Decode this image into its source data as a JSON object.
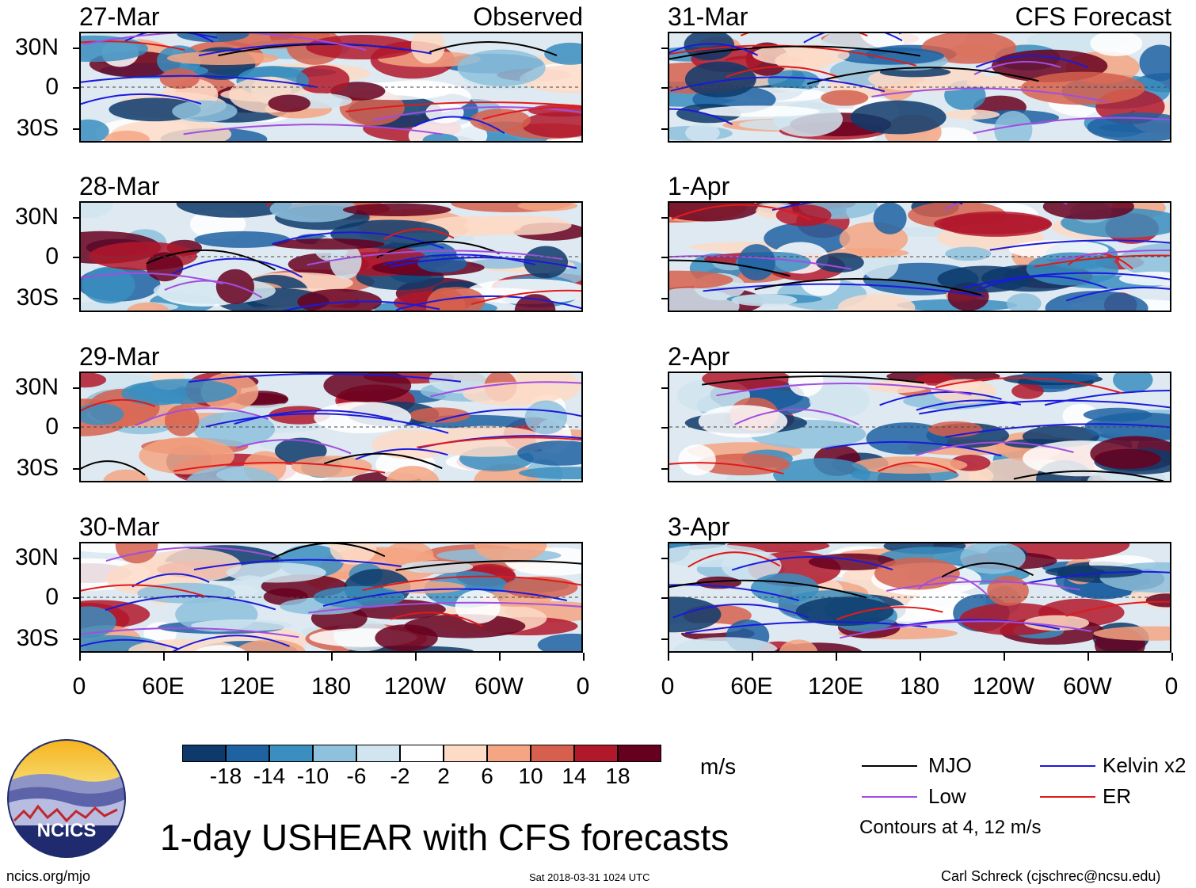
{
  "panels": {
    "left": [
      {
        "date": "27-Mar",
        "title": "Observed"
      },
      {
        "date": "28-Mar",
        "title": ""
      },
      {
        "date": "29-Mar",
        "title": ""
      },
      {
        "date": "30-Mar",
        "title": ""
      }
    ],
    "right": [
      {
        "date": "31-Mar",
        "title": "CFS Forecast"
      },
      {
        "date": "1-Apr",
        "title": ""
      },
      {
        "date": "2-Apr",
        "title": ""
      },
      {
        "date": "3-Apr",
        "title": ""
      }
    ]
  },
  "y_ticks": [
    "30N",
    "0",
    "30S"
  ],
  "x_ticks": [
    "0",
    "60E",
    "120E",
    "180",
    "120W",
    "60W",
    "0"
  ],
  "colorbar": {
    "labels": [
      "-18",
      "-14",
      "-10",
      "-6",
      "-2",
      "2",
      "6",
      "10",
      "14",
      "18"
    ],
    "units": "m/s",
    "colors": [
      "#0d3a6b",
      "#1e62a2",
      "#3a8ec0",
      "#8ec1dd",
      "#d1e5f0",
      "#ffffff",
      "#fddbc7",
      "#f4a582",
      "#d6604d",
      "#b2182b",
      "#67001f"
    ]
  },
  "legend": {
    "mjo": "MJO",
    "kelvin": "Kelvin x2",
    "low": "Low",
    "er": "ER",
    "contours_note": "Contours at 4, 12 m/s",
    "colors": {
      "mjo": "#000000",
      "kelvin": "#1a1adc",
      "low": "#a24de0",
      "er": "#e01a1a"
    }
  },
  "logo_text": "NCICS",
  "main_title": "1-day USHEAR with CFS forecasts",
  "footer": {
    "left": "ncics.org/mjo",
    "center": "Sat 2018-03-31 1024 UTC",
    "right": "Carl Schreck (cjschrec@ncsu.edu)"
  },
  "chart_data": {
    "type": "heatmap",
    "variable": "USHEAR",
    "units": "m/s",
    "x_range_deg": [
      0,
      360
    ],
    "y_range_deg": [
      -40,
      40
    ],
    "x_tick_labels": [
      "0",
      "60E",
      "120E",
      "180",
      "120W",
      "60W",
      "0"
    ],
    "y_tick_labels": [
      "30N",
      "0",
      "30S"
    ],
    "contour_levels": [
      4,
      12
    ],
    "panels": [
      "27-Mar",
      "28-Mar",
      "29-Mar",
      "30-Mar",
      "31-Mar",
      "1-Apr",
      "2-Apr",
      "3-Apr"
    ],
    "observed": [
      "27-Mar",
      "28-Mar",
      "29-Mar",
      "30-Mar"
    ],
    "forecast": [
      "31-Mar",
      "1-Apr",
      "2-Apr",
      "3-Apr"
    ]
  }
}
